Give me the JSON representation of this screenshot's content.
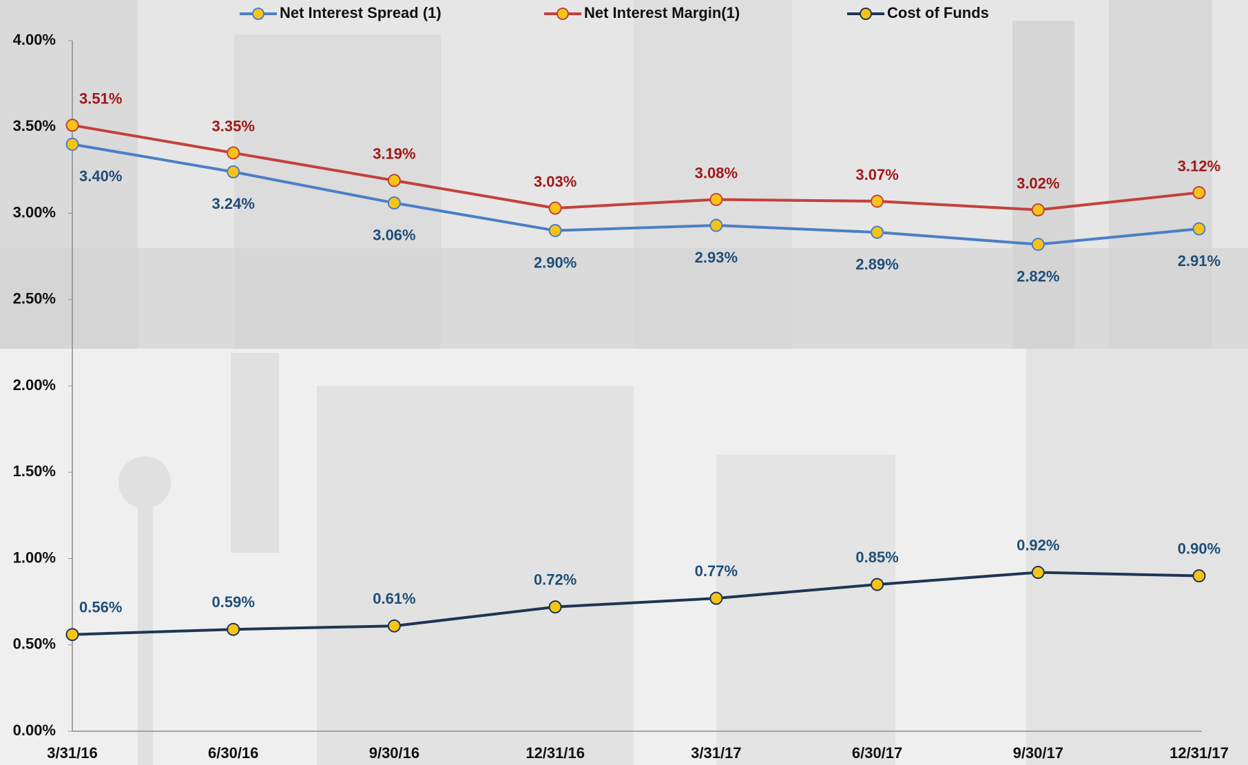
{
  "chart_data": {
    "type": "line",
    "categories": [
      "3/31/16",
      "6/30/16",
      "9/30/16",
      "12/31/16",
      "3/31/17",
      "6/30/17",
      "9/30/17",
      "12/31/17"
    ],
    "series": [
      {
        "name": "Net Interest Spread (1)",
        "color": "#4a7fc6",
        "label_color": "#1f4e79",
        "values": [
          3.4,
          3.24,
          3.06,
          2.9,
          2.93,
          2.89,
          2.82,
          2.91
        ],
        "value_labels": [
          "3.40%",
          "3.24%",
          "3.06%",
          "2.90%",
          "2.93%",
          "2.89%",
          "2.82%",
          "2.91%"
        ]
      },
      {
        "name": "Net Interest Margin(1)",
        "color": "#c4403c",
        "label_color": "#a01818",
        "values": [
          3.51,
          3.35,
          3.19,
          3.03,
          3.08,
          3.07,
          3.02,
          3.12
        ],
        "value_labels": [
          "3.51%",
          "3.35%",
          "3.19%",
          "3.03%",
          "3.08%",
          "3.07%",
          "3.02%",
          "3.12%"
        ]
      },
      {
        "name": "Cost of Funds",
        "color": "#1f3553",
        "label_color": "#1f4e79",
        "values": [
          0.56,
          0.59,
          0.61,
          0.72,
          0.77,
          0.85,
          0.92,
          0.9
        ],
        "value_labels": [
          "0.56%",
          "0.59%",
          "0.61%",
          "0.72%",
          "0.77%",
          "0.85%",
          "0.92%",
          "0.90%"
        ]
      }
    ],
    "marker_color": "#f6c417",
    "ylim": [
      0,
      4
    ],
    "yticks": [
      {
        "value": 0,
        "label": "0.00%"
      },
      {
        "value": 0.5,
        "label": "0.50%"
      },
      {
        "value": 1,
        "label": "1.00%"
      },
      {
        "value": 1.5,
        "label": "1.50%"
      },
      {
        "value": 2,
        "label": "2.00%"
      },
      {
        "value": 2.5,
        "label": "2.50%"
      },
      {
        "value": 3,
        "label": "3.00%"
      },
      {
        "value": 3.5,
        "label": "3.50%"
      },
      {
        "value": 4,
        "label": "4.00%"
      }
    ],
    "grid": false,
    "legend": "top"
  }
}
